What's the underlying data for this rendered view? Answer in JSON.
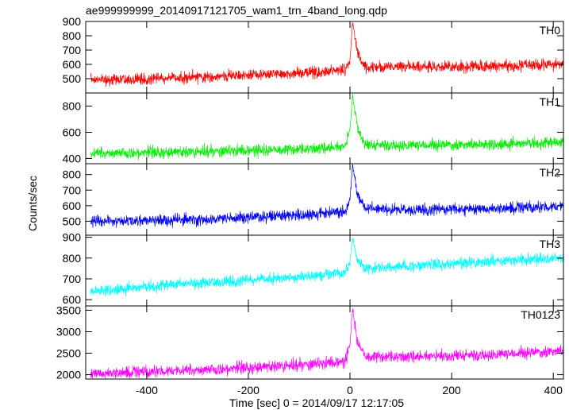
{
  "chart_data": {
    "type": "line",
    "title": "ae999999999_20140917121705_wam1_trn_4band_long.qdp",
    "xlabel": "Time [sec] 0 = 2014/09/17 12:17:05",
    "ylabel": "Counts/sec",
    "xlim": [
      -520,
      420
    ],
    "x_ticks": [
      -400,
      -200,
      0,
      200,
      400
    ],
    "grid": false,
    "panels": [
      {
        "name": "TH0",
        "color": "#ff0000",
        "ylim": [
          400,
          900
        ],
        "y_ticks": [
          500,
          600,
          700,
          800,
          900
        ],
        "trend": [
          [
            -510,
            490
          ],
          [
            -300,
            510
          ],
          [
            -100,
            540
          ],
          [
            -10,
            560
          ],
          [
            0,
            620
          ],
          [
            5,
            900
          ],
          [
            15,
            680
          ],
          [
            30,
            580
          ],
          [
            100,
            580
          ],
          [
            250,
            585
          ],
          [
            415,
            600
          ]
        ]
      },
      {
        "name": "TH1",
        "color": "#00ee00",
        "ylim": [
          360,
          900
        ],
        "y_ticks": [
          400,
          600,
          800
        ],
        "trend": [
          [
            -510,
            440
          ],
          [
            -300,
            450
          ],
          [
            -100,
            470
          ],
          [
            -10,
            490
          ],
          [
            0,
            620
          ],
          [
            5,
            880
          ],
          [
            15,
            640
          ],
          [
            30,
            500
          ],
          [
            100,
            500
          ],
          [
            250,
            505
          ],
          [
            415,
            520
          ]
        ]
      },
      {
        "name": "TH2",
        "color": "#0000ff",
        "ylim": [
          410,
          870
        ],
        "y_ticks": [
          500,
          600,
          700,
          800
        ],
        "trend": [
          [
            -510,
            500
          ],
          [
            -300,
            510
          ],
          [
            -100,
            540
          ],
          [
            -10,
            560
          ],
          [
            0,
            640
          ],
          [
            5,
            860
          ],
          [
            15,
            660
          ],
          [
            30,
            580
          ],
          [
            100,
            575
          ],
          [
            250,
            580
          ],
          [
            415,
            595
          ]
        ]
      },
      {
        "name": "TH3",
        "color": "#00ffff",
        "ylim": [
          570,
          910
        ],
        "y_ticks": [
          600,
          700,
          800,
          900
        ],
        "trend": [
          [
            -510,
            640
          ],
          [
            -300,
            680
          ],
          [
            -100,
            710
          ],
          [
            -10,
            730
          ],
          [
            0,
            780
          ],
          [
            5,
            900
          ],
          [
            15,
            790
          ],
          [
            30,
            750
          ],
          [
            100,
            760
          ],
          [
            250,
            780
          ],
          [
            415,
            800
          ]
        ]
      },
      {
        "name": "TH0123",
        "color": "#ff00ff",
        "ylim": [
          1900,
          3600
        ],
        "y_ticks": [
          2000,
          2500,
          3000,
          3500
        ],
        "trend": [
          [
            -510,
            2030
          ],
          [
            -300,
            2110
          ],
          [
            -100,
            2220
          ],
          [
            -10,
            2300
          ],
          [
            0,
            2700
          ],
          [
            5,
            3550
          ],
          [
            15,
            2750
          ],
          [
            30,
            2420
          ],
          [
            100,
            2420
          ],
          [
            250,
            2450
          ],
          [
            415,
            2550
          ]
        ]
      }
    ]
  }
}
